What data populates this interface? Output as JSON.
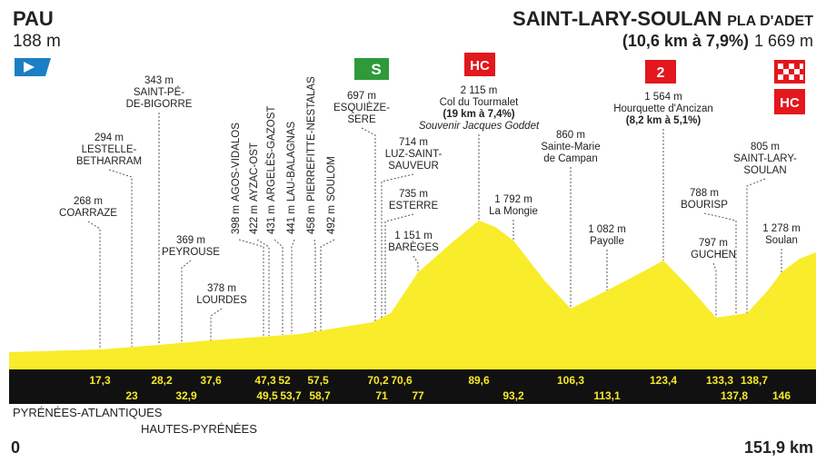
{
  "header": {
    "start_name": "PAU",
    "start_alt": "188 m",
    "finish_name": "SAINT-LARY-SOULAN",
    "finish_sub": "PLA D'ADET",
    "finish_climb": "(10,6 km à 7,9%)",
    "finish_alt": "1 669 m"
  },
  "icons": {
    "sprint": "S",
    "tourmalet": "HC",
    "hourquette": "2",
    "finish": "HC"
  },
  "waypoints": [
    {
      "lines": [
        "268 m",
        "COARRAZE"
      ]
    },
    {
      "lines": [
        "294 m",
        "LESTELLE-",
        "BETHARRAM"
      ]
    },
    {
      "lines": [
        "343 m",
        "SAINT-PÉ-",
        "DE-BIGORRE"
      ]
    },
    {
      "lines": [
        "369 m",
        "PEYROUSE"
      ]
    },
    {
      "lines": [
        "378 m",
        "LOURDES"
      ]
    },
    {
      "lines": [
        "398 m",
        "AGOS-VIDALOS"
      ]
    },
    {
      "lines": [
        "422 m",
        "AYZAC-OST"
      ]
    },
    {
      "lines": [
        "431 m",
        "ARGELÈS-GAZOST"
      ]
    },
    {
      "lines": [
        "441 m",
        "LAU-BALAGNAS"
      ]
    },
    {
      "lines": [
        "458 m",
        "PIERREFITTE-NESTALAS"
      ]
    },
    {
      "lines": [
        "492 m",
        "SOULOM"
      ]
    },
    {
      "lines": [
        "697 m",
        "ESQUIÈZE-",
        "SERE"
      ]
    },
    {
      "lines": [
        "714 m",
        "LUZ-SAINT-",
        "SAUVEUR"
      ]
    },
    {
      "lines": [
        "735 m",
        "ESTERRE"
      ]
    },
    {
      "lines": [
        "1 151 m",
        "BARÈGES"
      ]
    },
    {
      "lines": [
        "2 115 m",
        "Col du Tourmalet",
        "(19 km à 7,4%)",
        "Souvenir Jacques Goddet"
      ]
    },
    {
      "lines": [
        "1 792 m",
        "La Mongie"
      ]
    },
    {
      "lines": [
        "860 m",
        "Sainte-Marie",
        "de Campan"
      ]
    },
    {
      "lines": [
        "1 082 m",
        "Payolle"
      ]
    },
    {
      "lines": [
        "1 564 m",
        "Hourquette d'Ancizan",
        "(8,2 km à 5,1%)"
      ]
    },
    {
      "lines": [
        "797 m",
        "GUCHEN"
      ]
    },
    {
      "lines": [
        "788 m",
        "BOURISP"
      ]
    },
    {
      "lines": [
        "805 m",
        "SAINT-LARY-",
        "SOULAN"
      ]
    },
    {
      "lines": [
        "1 278 m",
        "Soulan"
      ]
    }
  ],
  "km_markers": [
    "17,3",
    "23",
    "28,2",
    "32,9",
    "37,6",
    "47,3",
    "49,5",
    "52",
    "53,7",
    "57,5",
    "58,7",
    "70,2",
    "71",
    "70,6",
    "77",
    "89,6",
    "93,2",
    "106,3",
    "113,1",
    "123,4",
    "133,3",
    "137,8",
    "138,7",
    "146"
  ],
  "footer": {
    "department_1": "PYRÉNÉES-ATLANTIQUES",
    "department_2": "HAUTES-PYRÉNÉES",
    "start_km": "0",
    "total_km": "151,9 km"
  }
}
